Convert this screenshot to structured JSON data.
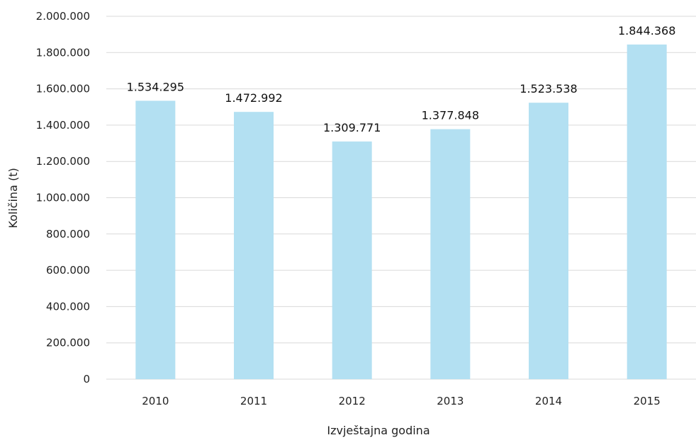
{
  "chart_data": {
    "type": "bar",
    "categories": [
      "2010",
      "2011",
      "2012",
      "2013",
      "2014",
      "2015"
    ],
    "values": [
      1534295,
      1472992,
      1309771,
      1377848,
      1523538,
      1844368
    ],
    "data_labels": [
      "1.534.295",
      "1.472.992",
      "1.309.771",
      "1.377.848",
      "1.523.538",
      "1.844.368"
    ],
    "title": "",
    "xlabel": "Izvještajna godina",
    "ylabel": "Količina (t)",
    "ylim": [
      0,
      2000000
    ],
    "yticks": [
      0,
      200000,
      400000,
      600000,
      800000,
      1000000,
      1200000,
      1400000,
      1600000,
      1800000,
      2000000
    ],
    "ytick_labels": [
      "0",
      "200.000",
      "400.000",
      "600.000",
      "800.000",
      "1.000.000",
      "1.200.000",
      "1.400.000",
      "1.600.000",
      "1.800.000",
      "2.000.000"
    ],
    "grid": true,
    "legend": "none",
    "bar_color": "#b3e0f2"
  }
}
